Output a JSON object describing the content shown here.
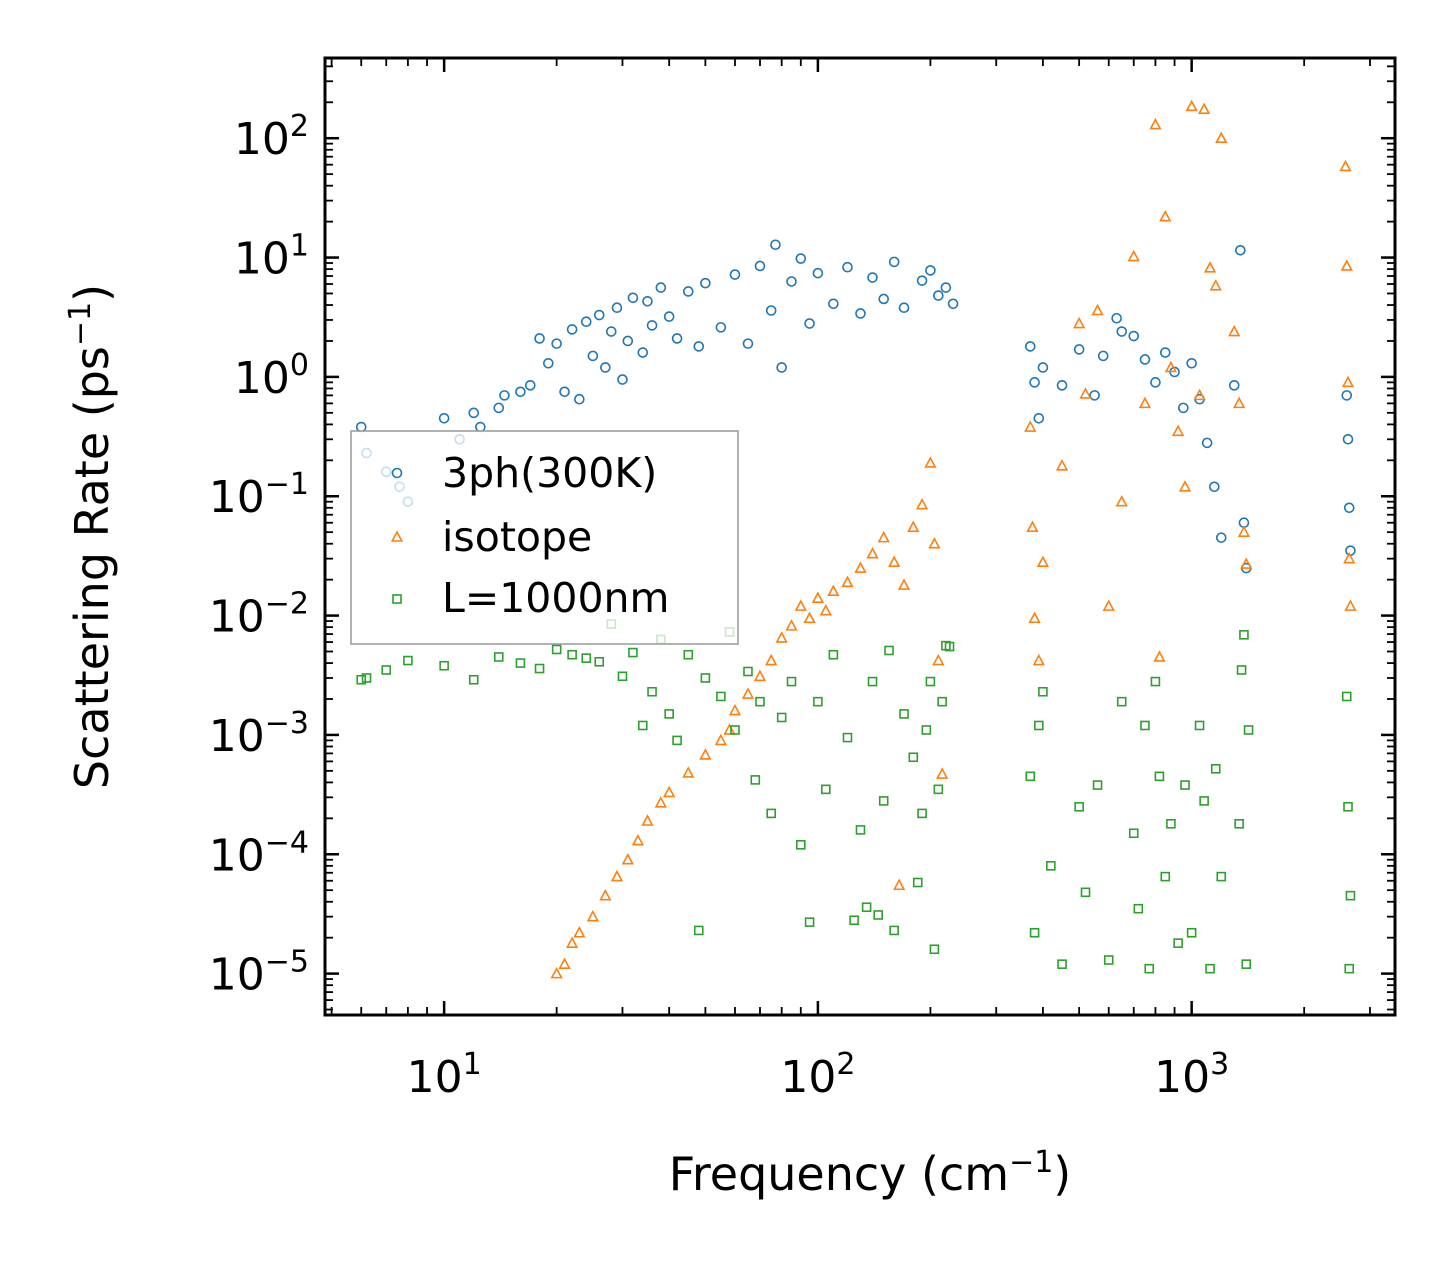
{
  "chart_data": {
    "type": "scatter",
    "xscale": "log",
    "yscale": "log",
    "xlim": [
      4.8,
      3500
    ],
    "ylim": [
      4.5e-06,
      470
    ],
    "xlabel": "Frequency (cm⁻¹)",
    "ylabel": "Scattering Rate (ps⁻¹)",
    "xlabel_main": "Frequency (cm",
    "xlabel_sup": "−1",
    "xlabel_end": ")",
    "ylabel_main": "Scattering Rate (ps",
    "ylabel_sup": "−1",
    "ylabel_end": ")",
    "x_ticks": [
      {
        "value": 10,
        "base": "10",
        "exp": "1"
      },
      {
        "value": 100,
        "base": "10",
        "exp": "2"
      },
      {
        "value": 1000,
        "base": "10",
        "exp": "3"
      }
    ],
    "y_ticks": [
      {
        "value": 1e-05,
        "base": "10",
        "exp": "−5"
      },
      {
        "value": 0.0001,
        "base": "10",
        "exp": "−4"
      },
      {
        "value": 0.001,
        "base": "10",
        "exp": "−3"
      },
      {
        "value": 0.01,
        "base": "10",
        "exp": "−2"
      },
      {
        "value": 0.1,
        "base": "10",
        "exp": "−1"
      },
      {
        "value": 1,
        "base": "10",
        "exp": "0"
      },
      {
        "value": 10,
        "base": "10",
        "exp": "1"
      },
      {
        "value": 100,
        "base": "10",
        "exp": "2"
      }
    ],
    "legend_position": "center-left",
    "series": [
      {
        "name": "3ph(300K)",
        "marker": "circle",
        "color": "#1f77b4",
        "points": [
          [
            6.0,
            0.38
          ],
          [
            6.2,
            0.23
          ],
          [
            7.0,
            0.16
          ],
          [
            7.6,
            0.12
          ],
          [
            8.0,
            0.09
          ],
          [
            10.0,
            0.45
          ],
          [
            11.0,
            0.3
          ],
          [
            12.0,
            0.5
          ],
          [
            12.5,
            0.38
          ],
          [
            14.0,
            0.55
          ],
          [
            14.5,
            0.7
          ],
          [
            16.0,
            0.75
          ],
          [
            17.0,
            0.85
          ],
          [
            18.0,
            2.1
          ],
          [
            19.0,
            1.3
          ],
          [
            20.0,
            1.9
          ],
          [
            21.0,
            0.75
          ],
          [
            22.0,
            2.5
          ],
          [
            23.0,
            0.65
          ],
          [
            24.0,
            2.9
          ],
          [
            25.0,
            1.5
          ],
          [
            26.0,
            3.3
          ],
          [
            27.0,
            1.2
          ],
          [
            28.0,
            2.4
          ],
          [
            29.0,
            3.8
          ],
          [
            30.0,
            0.95
          ],
          [
            31.0,
            2.0
          ],
          [
            32.0,
            4.6
          ],
          [
            34.0,
            1.6
          ],
          [
            35.0,
            4.3
          ],
          [
            36.0,
            2.7
          ],
          [
            38.0,
            5.6
          ],
          [
            40.0,
            3.2
          ],
          [
            42.0,
            2.1
          ],
          [
            45.0,
            5.2
          ],
          [
            48.0,
            1.8
          ],
          [
            50.0,
            6.1
          ],
          [
            55.0,
            2.6
          ],
          [
            60.0,
            7.2
          ],
          [
            65.0,
            1.9
          ],
          [
            70.0,
            8.5
          ],
          [
            75.0,
            3.6
          ],
          [
            77.0,
            12.8
          ],
          [
            80.0,
            1.2
          ],
          [
            85.0,
            6.3
          ],
          [
            90.0,
            9.8
          ],
          [
            95.0,
            2.8
          ],
          [
            100.0,
            7.4
          ],
          [
            110.0,
            4.1
          ],
          [
            120.0,
            8.3
          ],
          [
            130.0,
            3.4
          ],
          [
            140.0,
            6.8
          ],
          [
            150.0,
            4.5
          ],
          [
            160.0,
            9.2
          ],
          [
            170.0,
            3.8
          ],
          [
            190.0,
            6.4
          ],
          [
            200.0,
            7.8
          ],
          [
            210.0,
            4.8
          ],
          [
            220.0,
            5.6
          ],
          [
            230.0,
            4.1
          ],
          [
            370.0,
            1.8
          ],
          [
            380.0,
            0.9
          ],
          [
            390.0,
            0.45
          ],
          [
            400.0,
            1.2
          ],
          [
            450.0,
            0.85
          ],
          [
            500.0,
            1.7
          ],
          [
            550.0,
            0.7
          ],
          [
            580.0,
            1.5
          ],
          [
            630.0,
            3.1
          ],
          [
            650.0,
            2.4
          ],
          [
            700.0,
            2.2
          ],
          [
            750.0,
            1.4
          ],
          [
            800.0,
            0.9
          ],
          [
            850.0,
            1.6
          ],
          [
            900.0,
            1.1
          ],
          [
            950.0,
            0.55
          ],
          [
            1000.0,
            1.3
          ],
          [
            1050.0,
            0.65
          ],
          [
            1100.0,
            0.28
          ],
          [
            1150.0,
            0.12
          ],
          [
            1200.0,
            0.045
          ],
          [
            1300.0,
            0.85
          ],
          [
            1350.0,
            11.5
          ],
          [
            1380.0,
            0.06
          ],
          [
            1400.0,
            0.025
          ],
          [
            2600.0,
            0.7
          ],
          [
            2620.0,
            0.3
          ],
          [
            2640.0,
            0.08
          ],
          [
            2660.0,
            0.035
          ]
        ]
      },
      {
        "name": "isotope",
        "marker": "triangle",
        "color": "#ff7f0e",
        "points": [
          [
            20.0,
            1e-05
          ],
          [
            21.0,
            1.2e-05
          ],
          [
            22.0,
            1.8e-05
          ],
          [
            23.0,
            2.2e-05
          ],
          [
            25.0,
            3e-05
          ],
          [
            27.0,
            4.5e-05
          ],
          [
            29.0,
            6.5e-05
          ],
          [
            31.0,
            9e-05
          ],
          [
            33.0,
            0.00013
          ],
          [
            35.0,
            0.00019
          ],
          [
            38.0,
            0.00027
          ],
          [
            40.0,
            0.00033
          ],
          [
            45.0,
            0.00048
          ],
          [
            50.0,
            0.00068
          ],
          [
            55.0,
            0.0009
          ],
          [
            58.0,
            0.0011
          ],
          [
            60.0,
            0.0016
          ],
          [
            65.0,
            0.0022
          ],
          [
            70.0,
            0.0031
          ],
          [
            75.0,
            0.0042
          ],
          [
            80.0,
            0.0065
          ],
          [
            85.0,
            0.0082
          ],
          [
            90.0,
            0.012
          ],
          [
            95.0,
            0.0095
          ],
          [
            100.0,
            0.014
          ],
          [
            105.0,
            0.011
          ],
          [
            110.0,
            0.016
          ],
          [
            120.0,
            0.019
          ],
          [
            130.0,
            0.025
          ],
          [
            140.0,
            0.033
          ],
          [
            150.0,
            0.045
          ],
          [
            160.0,
            0.028
          ],
          [
            165.0,
            5.5e-05
          ],
          [
            170.0,
            0.018
          ],
          [
            180.0,
            0.055
          ],
          [
            190.0,
            0.085
          ],
          [
            200.0,
            0.19
          ],
          [
            205.0,
            0.04
          ],
          [
            210.0,
            0.0042
          ],
          [
            215.0,
            0.00047
          ],
          [
            370.0,
            0.38
          ],
          [
            375.0,
            0.055
          ],
          [
            380.0,
            0.0095
          ],
          [
            390.0,
            0.0042
          ],
          [
            400.0,
            0.028
          ],
          [
            450.0,
            0.18
          ],
          [
            500.0,
            2.8
          ],
          [
            520.0,
            0.72
          ],
          [
            560.0,
            3.6
          ],
          [
            600.0,
            0.012
          ],
          [
            650.0,
            0.09
          ],
          [
            700.0,
            10.2
          ],
          [
            750.0,
            0.6
          ],
          [
            800.0,
            130.0
          ],
          [
            820.0,
            0.0045
          ],
          [
            850.0,
            22.0
          ],
          [
            880.0,
            1.2
          ],
          [
            920.0,
            0.35
          ],
          [
            960.0,
            0.12
          ],
          [
            1000.0,
            185.0
          ],
          [
            1050.0,
            0.7
          ],
          [
            1080.0,
            175.0
          ],
          [
            1120.0,
            8.2
          ],
          [
            1160.0,
            5.8
          ],
          [
            1200.0,
            100.0
          ],
          [
            1300.0,
            2.4
          ],
          [
            1340.0,
            0.6
          ],
          [
            1380.0,
            0.05
          ],
          [
            1400.0,
            0.027
          ],
          [
            2580.0,
            58.0
          ],
          [
            2600.0,
            8.5
          ],
          [
            2620.0,
            0.9
          ],
          [
            2640.0,
            0.03
          ],
          [
            2660.0,
            0.012
          ]
        ]
      },
      {
        "name": "L=1000nm",
        "marker": "square",
        "color": "#2ca02c",
        "points": [
          [
            6.0,
            0.0029
          ],
          [
            6.2,
            0.003
          ],
          [
            7.0,
            0.0035
          ],
          [
            8.0,
            0.0042
          ],
          [
            10.0,
            0.0038
          ],
          [
            12.0,
            0.0029
          ],
          [
            14.0,
            0.0045
          ],
          [
            16.0,
            0.004
          ],
          [
            18.0,
            0.0036
          ],
          [
            20.0,
            0.0052
          ],
          [
            22.0,
            0.0047
          ],
          [
            24.0,
            0.0044
          ],
          [
            26.0,
            0.0041
          ],
          [
            28.0,
            0.0085
          ],
          [
            30.0,
            0.0031
          ],
          [
            32.0,
            0.0049
          ],
          [
            34.0,
            0.0012
          ],
          [
            36.0,
            0.0023
          ],
          [
            38.0,
            0.0063
          ],
          [
            40.0,
            0.0015
          ],
          [
            42.0,
            0.0009
          ],
          [
            45.0,
            0.0047
          ],
          [
            48.0,
            2.3e-05
          ],
          [
            50.0,
            0.003
          ],
          [
            55.0,
            0.0021
          ],
          [
            58.0,
            0.0073
          ],
          [
            60.0,
            0.0011
          ],
          [
            65.0,
            0.0034
          ],
          [
            68.0,
            0.00042
          ],
          [
            70.0,
            0.0019
          ],
          [
            75.0,
            0.00022
          ],
          [
            80.0,
            0.0014
          ],
          [
            85.0,
            0.0028
          ],
          [
            90.0,
            0.00012
          ],
          [
            95.0,
            2.7e-05
          ],
          [
            100.0,
            0.0019
          ],
          [
            105.0,
            0.00035
          ],
          [
            110.0,
            0.0047
          ],
          [
            120.0,
            0.00095
          ],
          [
            125.0,
            2.8e-05
          ],
          [
            130.0,
            0.00016
          ],
          [
            135.0,
            3.6e-05
          ],
          [
            140.0,
            0.0028
          ],
          [
            145.0,
            3.1e-05
          ],
          [
            150.0,
            0.00028
          ],
          [
            155.0,
            0.0051
          ],
          [
            160.0,
            2.3e-05
          ],
          [
            170.0,
            0.0015
          ],
          [
            180.0,
            0.00065
          ],
          [
            185.0,
            5.8e-05
          ],
          [
            190.0,
            0.00022
          ],
          [
            195.0,
            0.0011
          ],
          [
            200.0,
            0.0028
          ],
          [
            205.0,
            1.6e-05
          ],
          [
            210.0,
            0.00035
          ],
          [
            215.0,
            0.0019
          ],
          [
            220.0,
            0.0056
          ],
          [
            225.0,
            0.0055
          ],
          [
            370.0,
            0.00045
          ],
          [
            380.0,
            2.2e-05
          ],
          [
            390.0,
            0.0012
          ],
          [
            400.0,
            0.0023
          ],
          [
            420.0,
            8e-05
          ],
          [
            450.0,
            1.2e-05
          ],
          [
            500.0,
            0.00025
          ],
          [
            520.0,
            4.8e-05
          ],
          [
            560.0,
            0.00038
          ],
          [
            600.0,
            1.3e-05
          ],
          [
            650.0,
            0.0019
          ],
          [
            700.0,
            0.00015
          ],
          [
            720.0,
            3.5e-05
          ],
          [
            750.0,
            0.0012
          ],
          [
            770.0,
            1.1e-05
          ],
          [
            800.0,
            0.0028
          ],
          [
            820.0,
            0.00045
          ],
          [
            850.0,
            6.5e-05
          ],
          [
            880.0,
            0.00018
          ],
          [
            920.0,
            1.8e-05
          ],
          [
            960.0,
            0.00038
          ],
          [
            1000.0,
            2.2e-05
          ],
          [
            1050.0,
            0.0012
          ],
          [
            1080.0,
            0.00028
          ],
          [
            1120.0,
            1.1e-05
          ],
          [
            1160.0,
            0.00052
          ],
          [
            1200.0,
            6.5e-05
          ],
          [
            1340.0,
            0.00018
          ],
          [
            1360.0,
            0.0035
          ],
          [
            1380.0,
            0.0069
          ],
          [
            1400.0,
            1.2e-05
          ],
          [
            1420.0,
            0.0011
          ],
          [
            2600.0,
            0.0021
          ],
          [
            2620.0,
            0.00025
          ],
          [
            2640.0,
            1.1e-05
          ],
          [
            2660.0,
            4.5e-05
          ]
        ]
      }
    ]
  }
}
